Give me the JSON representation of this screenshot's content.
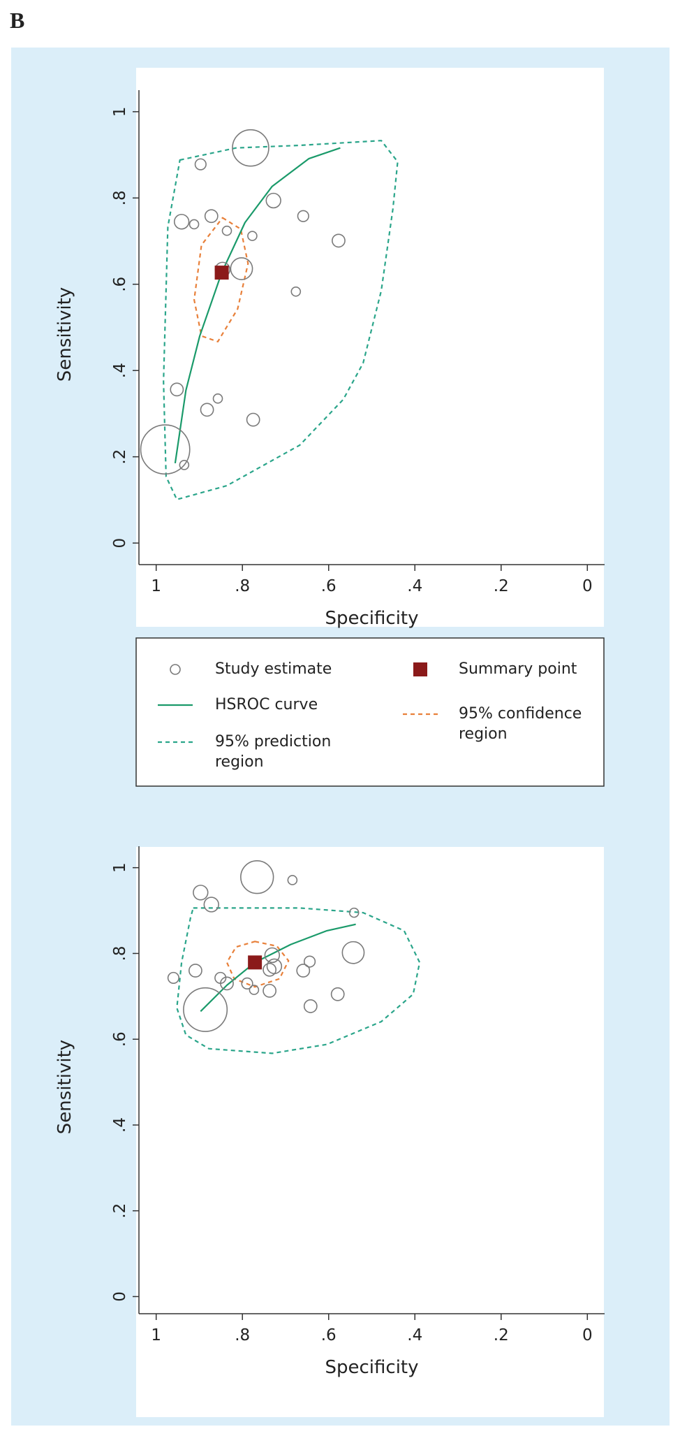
{
  "panel_label": "B",
  "chart_data": [
    {
      "type": "scatter",
      "x_label": "Specificity",
      "y_label": "Sensitivity",
      "xlim": [
        1.04,
        -0.04
      ],
      "ylim": [
        -0.05,
        1.05
      ],
      "xticks": [
        1,
        {
          "value": 0.8,
          "label": ".8"
        },
        {
          "value": 0.6,
          "label": ".6"
        },
        {
          "value": 0.4,
          "label": ".4"
        },
        {
          "value": 0.2,
          "label": ".2"
        },
        0
      ],
      "yticks": [
        0,
        {
          "value": 0.2,
          "label": ".2"
        },
        {
          "value": 0.4,
          "label": ".4"
        },
        {
          "value": 0.6,
          "label": ".6"
        },
        {
          "value": 0.8,
          "label": ".8"
        },
        1
      ],
      "series": [
        {
          "name": "Study estimate",
          "type": "bubble",
          "color": "#7a7a7a",
          "x": [
            0.781,
            0.897,
            0.728,
            0.659,
            0.941,
            0.912,
            0.872,
            0.836,
            0.777,
            0.577,
            0.846,
            0.802,
            0.676,
            0.952,
            0.857,
            0.882,
            0.775,
            0.979,
            0.935
          ],
          "values": [
            0.916,
            0.878,
            0.794,
            0.758,
            0.745,
            0.739,
            0.758,
            0.724,
            0.712,
            0.701,
            0.634,
            0.636,
            0.583,
            0.356,
            0.335,
            0.309,
            0.286,
            0.217,
            0.181
          ],
          "sizes": [
            20,
            6,
            8,
            6,
            8,
            5,
            7,
            5,
            5,
            7,
            8,
            12,
            5,
            7,
            5,
            7,
            7,
            27,
            5
          ]
        },
        {
          "name": "Summary point",
          "type": "square",
          "color": "#8b1a1a",
          "x": [
            0.848
          ],
          "values": [
            0.627
          ]
        },
        {
          "name": "HSROC curve",
          "type": "line",
          "color": "#1a9a6a",
          "x": [
            0.956,
            0.931,
            0.899,
            0.848,
            0.794,
            0.731,
            0.646,
            0.573
          ],
          "values": [
            0.185,
            0.354,
            0.48,
            0.627,
            0.743,
            0.827,
            0.891,
            0.916
          ]
        },
        {
          "name": "95% prediction region",
          "type": "region",
          "style": "dashed",
          "color": "#2aa58a",
          "x": [
            0.945,
            0.815,
            0.667,
            0.478,
            0.44,
            0.451,
            0.478,
            0.52,
            0.566,
            0.667,
            0.836,
            0.952,
            0.977,
            0.983,
            0.973
          ],
          "values": [
            0.888,
            0.916,
            0.922,
            0.933,
            0.884,
            0.775,
            0.585,
            0.417,
            0.333,
            0.227,
            0.133,
            0.101,
            0.154,
            0.375,
            0.733
          ]
        },
        {
          "name": "95% confidence region",
          "type": "region",
          "style": "dashed",
          "color": "#e8803a",
          "x": [
            0.846,
            0.804,
            0.787,
            0.811,
            0.857,
            0.895,
            0.912,
            0.895
          ],
          "values": [
            0.754,
            0.728,
            0.648,
            0.543,
            0.467,
            0.48,
            0.564,
            0.691
          ]
        }
      ]
    },
    {
      "type": "scatter",
      "x_label": "Specificity",
      "y_label": "Sensitivity",
      "xlim": [
        1.04,
        -0.04
      ],
      "ylim": [
        -0.04,
        1.05
      ],
      "xticks": [
        1,
        {
          "value": 0.8,
          "label": ".8"
        },
        {
          "value": 0.6,
          "label": ".6"
        },
        {
          "value": 0.4,
          "label": ".4"
        },
        {
          "value": 0.2,
          "label": ".2"
        },
        0
      ],
      "yticks": [
        0,
        {
          "value": 0.2,
          "label": ".2"
        },
        {
          "value": 0.4,
          "label": ".4"
        },
        {
          "value": 0.6,
          "label": ".6"
        },
        {
          "value": 0.8,
          "label": ".8"
        },
        1
      ],
      "series": [
        {
          "type": "bubble",
          "color": "#7a7a7a",
          "x": [
            0.766,
            0.684,
            0.897,
            0.872,
            0.541,
            0.543,
            0.731,
            0.726,
            0.737,
            0.644,
            0.659,
            0.96,
            0.909,
            0.851,
            0.836,
            0.789,
            0.773,
            0.737,
            0.579,
            0.642,
            0.886
          ],
          "values": [
            0.978,
            0.971,
            0.942,
            0.914,
            0.895,
            0.802,
            0.796,
            0.77,
            0.762,
            0.781,
            0.76,
            0.743,
            0.76,
            0.743,
            0.73,
            0.73,
            0.715,
            0.713,
            0.705,
            0.677,
            0.669
          ],
          "sizes": [
            18,
            5,
            8,
            8,
            5,
            12,
            8,
            8,
            7,
            6,
            7,
            6,
            7,
            6,
            7,
            6,
            5,
            7,
            7,
            7,
            24
          ]
        },
        {
          "type": "square",
          "color": "#8b1a1a",
          "x": [
            0.771
          ],
          "values": [
            0.779
          ]
        },
        {
          "type": "line",
          "color": "#1a9a6a",
          "x": [
            0.897,
            0.836,
            0.771,
            0.688,
            0.604,
            0.537
          ],
          "values": [
            0.665,
            0.726,
            0.779,
            0.821,
            0.853,
            0.868
          ]
        },
        {
          "type": "region",
          "style": "dashed",
          "color": "#2aa58a",
          "x": [
            0.914,
            0.815,
            0.667,
            0.52,
            0.425,
            0.389,
            0.404,
            0.478,
            0.604,
            0.731,
            0.878,
            0.931,
            0.952,
            0.941,
            0.92
          ],
          "values": [
            0.906,
            0.906,
            0.906,
            0.895,
            0.853,
            0.779,
            0.705,
            0.641,
            0.588,
            0.567,
            0.578,
            0.61,
            0.673,
            0.779,
            0.885
          ]
        },
        {
          "type": "region",
          "style": "dashed",
          "color": "#e8803a",
          "x": [
            0.771,
            0.72,
            0.693,
            0.714,
            0.771,
            0.819,
            0.836,
            0.815
          ],
          "values": [
            0.828,
            0.817,
            0.783,
            0.741,
            0.722,
            0.741,
            0.779,
            0.815
          ]
        }
      ]
    }
  ]
}
